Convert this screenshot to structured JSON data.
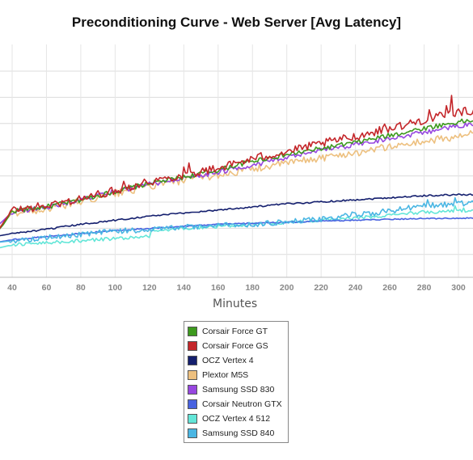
{
  "chart_data": {
    "type": "line",
    "title": "Preconditioning Curve - Web Server [Avg Latency]",
    "xlabel": "Minutes",
    "ylabel": "",
    "x_ticks": [
      40,
      60,
      80,
      100,
      120,
      140,
      160,
      180,
      200,
      220,
      240,
      260,
      280,
      300
    ],
    "xlim": [
      30,
      310
    ],
    "y_gridlines": 8,
    "grid": true,
    "legend_position": "bottom",
    "note": "y-axis tick labels are cropped; values are relative latency (0 = bottom of plot, 1 = top)",
    "series": [
      {
        "name": "Corsair Force GT",
        "color": "#3d9a1e",
        "noise": 0.012,
        "points": [
          [
            30,
            0.16
          ],
          [
            32,
            0.15
          ],
          [
            35,
            0.18
          ],
          [
            40,
            0.245
          ],
          [
            60,
            0.265
          ],
          [
            80,
            0.3
          ],
          [
            100,
            0.34
          ],
          [
            120,
            0.38
          ],
          [
            140,
            0.41
          ],
          [
            160,
            0.445
          ],
          [
            180,
            0.49
          ],
          [
            200,
            0.52
          ],
          [
            220,
            0.55
          ],
          [
            240,
            0.58
          ],
          [
            260,
            0.615
          ],
          [
            280,
            0.65
          ],
          [
            300,
            0.68
          ],
          [
            310,
            0.69
          ]
        ]
      },
      {
        "name": "Corsair Force GS",
        "color": "#c4262a",
        "noise": 0.02,
        "points": [
          [
            30,
            0.16
          ],
          [
            32,
            0.15
          ],
          [
            35,
            0.19
          ],
          [
            40,
            0.25
          ],
          [
            60,
            0.27
          ],
          [
            80,
            0.305
          ],
          [
            100,
            0.345
          ],
          [
            120,
            0.39
          ],
          [
            140,
            0.42
          ],
          [
            160,
            0.455
          ],
          [
            180,
            0.5
          ],
          [
            200,
            0.535
          ],
          [
            220,
            0.575
          ],
          [
            240,
            0.61
          ],
          [
            260,
            0.65
          ],
          [
            280,
            0.69
          ],
          [
            300,
            0.73
          ],
          [
            310,
            0.735
          ]
        ],
        "spikes": [
          [
            105,
            0.39
          ],
          [
            140,
            0.46
          ],
          [
            143,
            0.48
          ],
          [
            185,
            0.53
          ],
          [
            214,
            0.56
          ],
          [
            235,
            0.6
          ],
          [
            238,
            0.59
          ],
          [
            257,
            0.67
          ],
          [
            268,
            0.65
          ],
          [
            272,
            0.69
          ],
          [
            283,
            0.74
          ],
          [
            286,
            0.7
          ],
          [
            293,
            0.76
          ],
          [
            296,
            0.81
          ]
        ]
      },
      {
        "name": "OCZ Vertex 4",
        "color": "#141f6e",
        "noise": 0.004,
        "points": [
          [
            30,
            0.12
          ],
          [
            40,
            0.135
          ],
          [
            60,
            0.155
          ],
          [
            80,
            0.18
          ],
          [
            100,
            0.2
          ],
          [
            120,
            0.22
          ],
          [
            140,
            0.235
          ],
          [
            160,
            0.25
          ],
          [
            180,
            0.265
          ],
          [
            200,
            0.28
          ],
          [
            220,
            0.29
          ],
          [
            240,
            0.3
          ],
          [
            260,
            0.31
          ],
          [
            280,
            0.32
          ],
          [
            300,
            0.325
          ],
          [
            310,
            0.325
          ]
        ]
      },
      {
        "name": "Plextor M5S",
        "color": "#edc07f",
        "noise": 0.018,
        "points": [
          [
            30,
            0.14
          ],
          [
            40,
            0.235
          ],
          [
            60,
            0.255
          ],
          [
            80,
            0.29
          ],
          [
            100,
            0.33
          ],
          [
            120,
            0.365
          ],
          [
            140,
            0.395
          ],
          [
            160,
            0.42
          ],
          [
            180,
            0.45
          ],
          [
            200,
            0.48
          ],
          [
            220,
            0.505
          ],
          [
            240,
            0.53
          ],
          [
            260,
            0.56
          ],
          [
            280,
            0.585
          ],
          [
            300,
            0.61
          ],
          [
            310,
            0.625
          ]
        ]
      },
      {
        "name": "Samsung SSD 830",
        "color": "#9747e0",
        "noise": 0.012,
        "points": [
          [
            30,
            0.16
          ],
          [
            40,
            0.24
          ],
          [
            60,
            0.265
          ],
          [
            80,
            0.3
          ],
          [
            100,
            0.34
          ],
          [
            120,
            0.375
          ],
          [
            140,
            0.405
          ],
          [
            160,
            0.435
          ],
          [
            180,
            0.47
          ],
          [
            200,
            0.505
          ],
          [
            220,
            0.54
          ],
          [
            240,
            0.57
          ],
          [
            260,
            0.6
          ],
          [
            280,
            0.63
          ],
          [
            300,
            0.66
          ],
          [
            310,
            0.67
          ]
        ]
      },
      {
        "name": "Corsair Neutron GTX",
        "color": "#4862e0",
        "noise": 0.003,
        "points": [
          [
            30,
            0.09
          ],
          [
            40,
            0.105
          ],
          [
            60,
            0.12
          ],
          [
            80,
            0.135
          ],
          [
            100,
            0.15
          ],
          [
            120,
            0.16
          ],
          [
            140,
            0.17
          ],
          [
            160,
            0.18
          ],
          [
            180,
            0.185
          ],
          [
            200,
            0.19
          ],
          [
            220,
            0.195
          ],
          [
            240,
            0.2
          ],
          [
            260,
            0.205
          ],
          [
            280,
            0.208
          ],
          [
            300,
            0.21
          ],
          [
            310,
            0.21
          ]
        ]
      },
      {
        "name": "OCZ Vertex 4 512",
        "color": "#63e6d8",
        "noise": 0.008,
        "points": [
          [
            30,
            0.06
          ],
          [
            40,
            0.08
          ],
          [
            60,
            0.09
          ],
          [
            80,
            0.1
          ],
          [
            100,
            0.11
          ],
          [
            120,
            0.12
          ],
          [
            121,
            0.15
          ],
          [
            140,
            0.16
          ],
          [
            160,
            0.17
          ],
          [
            180,
            0.18
          ],
          [
            200,
            0.19
          ],
          [
            220,
            0.2
          ],
          [
            240,
            0.21
          ],
          [
            260,
            0.225
          ],
          [
            280,
            0.24
          ],
          [
            300,
            0.245
          ],
          [
            310,
            0.25
          ]
        ],
        "spikes": [
          [
            298,
            0.27
          ],
          [
            303,
            0.26
          ]
        ]
      },
      {
        "name": "Samsung SSD 840",
        "color": "#4ab6e3",
        "noise": 0.014,
        "points": [
          [
            30,
            0.09
          ],
          [
            40,
            0.1
          ],
          [
            60,
            0.115
          ],
          [
            80,
            0.13
          ],
          [
            100,
            0.145
          ],
          [
            120,
            0.155
          ],
          [
            140,
            0.165
          ],
          [
            160,
            0.175
          ],
          [
            180,
            0.18
          ],
          [
            200,
            0.19
          ],
          [
            220,
            0.205
          ],
          [
            240,
            0.225
          ],
          [
            260,
            0.245
          ],
          [
            280,
            0.27
          ],
          [
            300,
            0.28
          ],
          [
            310,
            0.285
          ]
        ],
        "spikes": [
          [
            238,
            0.24
          ],
          [
            264,
            0.25
          ],
          [
            282,
            0.3
          ],
          [
            298,
            0.31
          ]
        ]
      }
    ]
  }
}
